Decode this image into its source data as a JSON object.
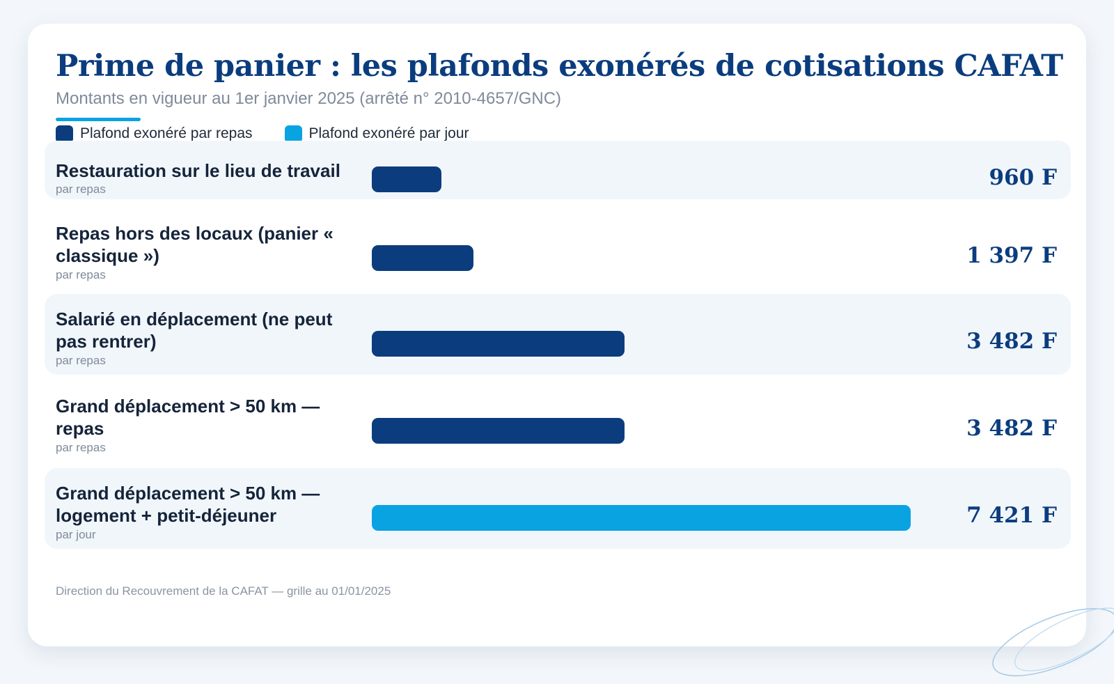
{
  "chart_data": {
    "type": "bar",
    "orientation": "horizontal",
    "title": "Prime de panier : les plafonds exonérés de cotisations CAFAT",
    "subtitle": "Montants en vigueur au 1er janvier 2025 (arrêté n° 2010-4657/GNC)",
    "legend": [
      {
        "label": "Plafond exonéré par repas",
        "color": "#0b3d7e"
      },
      {
        "label": "Plafond exonéré par jour",
        "color": "#0aa3e2"
      }
    ],
    "legend_position": "top-left",
    "grid": false,
    "xlim": [
      0,
      7421
    ],
    "categories": [
      {
        "label": "Restauration sur le lieu de travail",
        "unit": "par repas",
        "value": 960,
        "display": "960 F",
        "series": "Plafond exonéré par repas"
      },
      {
        "label": "Repas hors des locaux (panier « classique »)",
        "unit": "par repas",
        "value": 1397,
        "display": "1 397 F",
        "series": "Plafond exonéré par repas"
      },
      {
        "label": "Salarié en déplacement (ne peut pas rentrer)",
        "unit": "par repas",
        "value": 3482,
        "display": "3 482 F",
        "series": "Plafond exonéré par repas"
      },
      {
        "label": "Grand déplacement > 50 km — repas",
        "unit": "par repas",
        "value": 3482,
        "display": "3 482 F",
        "series": "Plafond exonéré par repas"
      },
      {
        "label": "Grand déplacement > 50 km — logement + petit-déjeuner",
        "unit": "par jour",
        "value": 7421,
        "display": "7 421 F",
        "series": "Plafond exonéré par jour"
      }
    ],
    "footer": "Direction du Recouvrement de la CAFAT — grille au 01/01/2025"
  }
}
